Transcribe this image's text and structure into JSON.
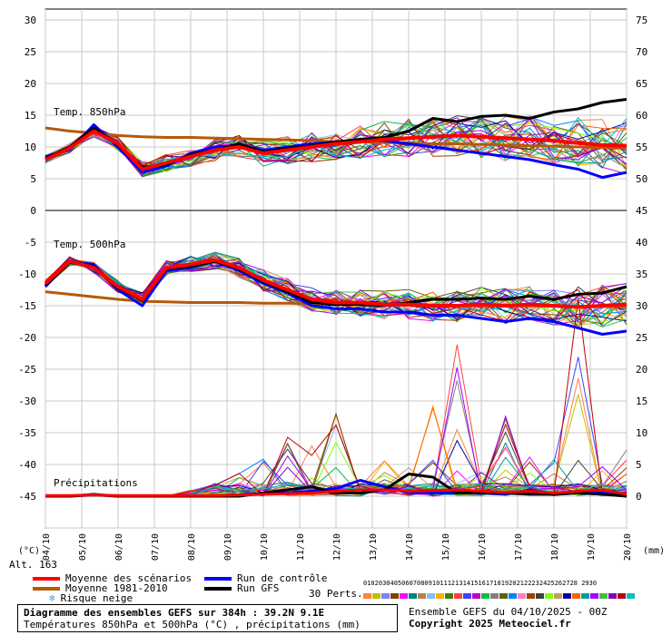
{
  "chart_data": {
    "type": "line",
    "x_labels": [
      "04/10",
      "05/10",
      "06/10",
      "07/10",
      "08/10",
      "09/10",
      "10/10",
      "11/10",
      "12/10",
      "13/10",
      "14/10",
      "15/10",
      "16/10",
      "17/10",
      "18/10",
      "19/10",
      "20/10"
    ],
    "y_left_ticks": [
      "30",
      "25",
      "20",
      "15",
      "10",
      "5",
      "0",
      "-5",
      "-10",
      "-15",
      "-20",
      "-25",
      "-30",
      "-35",
      "-40",
      "-45"
    ],
    "y_right_ticks": [
      "75",
      "70",
      "65",
      "60",
      "55",
      "50",
      "45",
      "40",
      "35",
      "30",
      "25",
      "20",
      "15",
      "10",
      "5",
      "0"
    ],
    "y_left_unit": "(°C)",
    "y_right_unit": "(mm)",
    "alt_label": "Alt. 163",
    "panels": {
      "t850": {
        "label": "Temp. 850hPa",
        "ylim": [
          0,
          30
        ],
        "mean": [
          8.0,
          9.8,
          12.5,
          10.5,
          6.5,
          7.5,
          8.5,
          9.5,
          10.0,
          9.0,
          9.5,
          10.0,
          10.5,
          10.8,
          11.2,
          11.4,
          11.6,
          11.8,
          11.6,
          11.4,
          11.2,
          11.0,
          10.6,
          10.3,
          10.2
        ],
        "control": [
          8.5,
          9.5,
          13.5,
          10.0,
          6.0,
          7.0,
          9.0,
          10.0,
          10.2,
          9.5,
          10.0,
          10.5,
          10.8,
          11.0,
          11.0,
          10.5,
          10.0,
          9.5,
          9.0,
          8.5,
          8.0,
          7.2,
          6.5,
          5.2,
          6.0
        ],
        "gfs": [
          8.2,
          10.0,
          13.0,
          10.2,
          6.8,
          7.2,
          8.8,
          9.5,
          10.5,
          9.2,
          9.8,
          10.2,
          10.8,
          11.2,
          11.5,
          12.5,
          14.5,
          14.0,
          14.8,
          15.0,
          14.5,
          15.5,
          16.0,
          17.0,
          17.5
        ],
        "climatology": [
          13.0,
          12.5,
          12.2,
          11.8,
          11.6,
          11.5,
          11.5,
          11.4,
          11.3,
          11.2,
          11.1,
          11.0,
          10.8,
          10.8,
          10.7,
          10.6,
          10.5,
          10.5,
          10.4,
          10.3,
          10.2,
          10.1,
          10.0,
          9.9,
          9.8
        ]
      },
      "t500": {
        "label": "Temp. 500hPa",
        "ylim": [
          -20,
          -5
        ],
        "mean": [
          -11.5,
          -8.0,
          -9.0,
          -12.0,
          -14.0,
          -9.0,
          -8.5,
          -7.8,
          -9.0,
          -11.0,
          -12.5,
          -14.0,
          -14.5,
          -14.5,
          -14.8,
          -14.8,
          -15.0,
          -15.0,
          -14.8,
          -15.0,
          -14.8,
          -15.0,
          -15.2,
          -15.0,
          -14.8
        ],
        "control": [
          -12.0,
          -8.0,
          -8.5,
          -12.5,
          -15.0,
          -9.5,
          -9.0,
          -8.0,
          -9.5,
          -11.5,
          -13.0,
          -15.0,
          -15.5,
          -15.5,
          -16.0,
          -16.0,
          -16.5,
          -16.5,
          -17.0,
          -17.5,
          -17.0,
          -17.5,
          -18.5,
          -19.5,
          -19.0
        ],
        "gfs": [
          -11.8,
          -8.2,
          -8.8,
          -12.2,
          -14.2,
          -9.2,
          -8.8,
          -8.0,
          -9.2,
          -11.2,
          -12.8,
          -14.5,
          -14.8,
          -14.8,
          -15.0,
          -14.5,
          -14.0,
          -14.0,
          -13.8,
          -14.0,
          -13.5,
          -14.0,
          -13.2,
          -13.0,
          -12.0
        ],
        "climatology": [
          -12.8,
          -13.2,
          -13.6,
          -14.0,
          -14.3,
          -14.4,
          -14.5,
          -14.5,
          -14.5,
          -14.6,
          -14.6,
          -14.7,
          -14.7,
          -14.8,
          -14.8,
          -14.9,
          -14.9,
          -15.0,
          -15.0,
          -15.0,
          -15.0,
          -15.1,
          -15.1,
          -15.1,
          -15.2
        ]
      },
      "precip": {
        "label": "Précipitations",
        "ylim_mm": [
          0,
          75
        ],
        "mean": [
          0.1,
          0.1,
          0.2,
          0.1,
          0.1,
          0.1,
          0.1,
          0.1,
          0.2,
          0.3,
          0.4,
          0.5,
          0.8,
          1.0,
          1.0,
          0.8,
          0.9,
          1.0,
          0.8,
          0.6,
          0.8,
          0.5,
          0.8,
          1.0,
          0.3
        ],
        "control": [
          0,
          0,
          0.3,
          0,
          0,
          0,
          0,
          0,
          0.2,
          0.5,
          0.5,
          0.8,
          1.2,
          2.5,
          1.5,
          0.5,
          0.5,
          0.5,
          0.5,
          0.3,
          1.0,
          0.3,
          0.8,
          0.5,
          0
        ],
        "gfs": [
          0,
          0,
          0.2,
          0,
          0,
          0,
          0,
          0,
          0,
          0.5,
          1.0,
          1.5,
          0.5,
          0.5,
          1.0,
          3.5,
          3.0,
          0.5,
          0.5,
          0.5,
          0.3,
          0.3,
          0.5,
          0.3,
          0
        ],
        "perturbation_peaks": [
          0,
          0,
          0,
          0,
          0,
          0,
          1.0,
          3.0,
          4.0,
          6.0,
          11.0,
          9.0,
          15.0,
          7.0,
          6.0,
          7.0,
          18.0,
          26.0,
          4.0,
          14.0,
          9.0,
          12.0,
          35.0,
          5.0,
          8.0
        ]
      }
    },
    "perturbation_count": 30
  },
  "legend": {
    "mean_label": "Moyenne des scénarios",
    "climatology_label": "Moyenne 1981-2010",
    "snow_label": "Risque neige",
    "control_label": "Run de contrôle",
    "gfs_label": "Run GFS",
    "perts_label": "30 Perts.",
    "perts_numbers": "01020304050607080910111213141516171819202122232425262728 2930"
  },
  "colors": {
    "mean": "#ff0000",
    "climatology": "#b45a0a",
    "control": "#0000ff",
    "gfs": "#000000",
    "grid": "#c8c8c8"
  },
  "perts_colors": [
    "#ff8040",
    "#c0c000",
    "#8080ff",
    "#804000",
    "#ff00ff",
    "#008080",
    "#c08040",
    "#80c0ff",
    "#ffb000",
    "#408000",
    "#ff4040",
    "#4040ff",
    "#c000c0",
    "#00c040",
    "#808080",
    "#606000",
    "#0080ff",
    "#ff80c0",
    "#a04000",
    "#404040",
    "#80ff00",
    "#c0a060",
    "#0000a0",
    "#ff6000",
    "#00a0a0",
    "#a000ff",
    "#40c040",
    "#8000c0",
    "#c00000",
    "#00c0c0"
  ],
  "caption": {
    "title": "Diagramme des ensembles GEFS sur 384h : 39.2N 9.1E",
    "subtitle": "Températures 850hPa et 500hPa (°C) , précipitations (mm)",
    "run_info": "Ensemble GEFS du 04/10/2025 - 00Z",
    "copyright": "Copyright 2025 Meteociel.fr"
  }
}
